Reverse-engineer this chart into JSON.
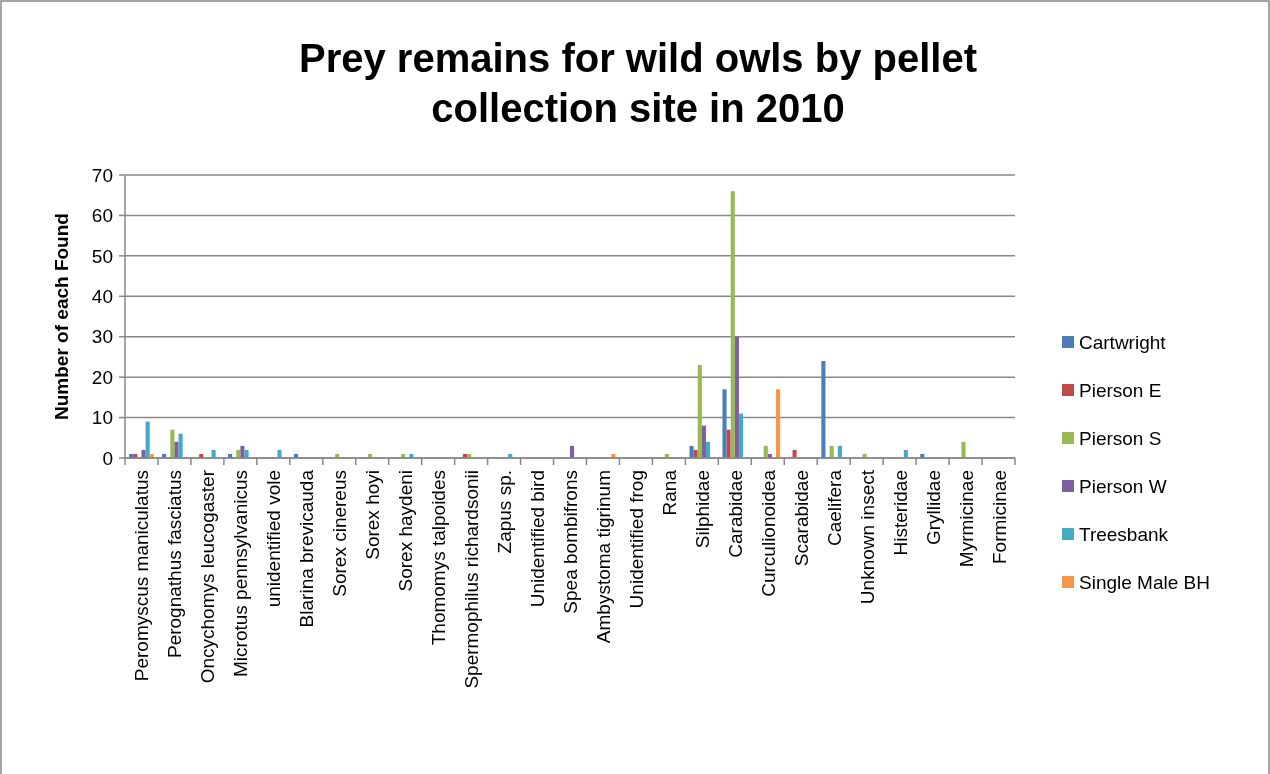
{
  "chart_data": {
    "type": "bar",
    "title": "Prey remains for wild owls by pellet collection site in 2010",
    "ylabel": "Number of each Found",
    "categories": [
      "Peromyscus maniculatus",
      "Perognathus fasciatus",
      "Oncychomys leucogaster",
      "Microtus pennsylvanicus",
      "unidentified vole",
      "Blarina brevicauda",
      "Sorex cinereus",
      "Sorex hoyi",
      "Sorex haydeni",
      "Thomomys talpoides",
      "Spermophilus richardsonii",
      "Zapus sp.",
      "Unidentified bird",
      "Spea bombifrons",
      "Ambystoma tigrinum",
      "Unidentified frog",
      "Rana",
      "Silphidae",
      "Carabidae",
      "Curculionoidea",
      "Scarabidae",
      "Caelifera",
      "Unknown insect",
      "Histeridae",
      "Gryllidae",
      "Myrmicinae",
      "Formicinae"
    ],
    "series": [
      {
        "name": "Cartwright",
        "color": "#4a7ebb",
        "values": [
          1,
          1,
          0,
          1,
          0,
          1,
          0,
          0,
          0,
          0,
          0,
          0,
          0,
          0,
          0,
          0,
          0,
          3,
          17,
          0,
          0,
          24,
          0,
          0,
          1,
          0,
          0
        ]
      },
      {
        "name": "Pierson E",
        "color": "#be4b48",
        "values": [
          1,
          0,
          1,
          0,
          0,
          0,
          0,
          0,
          0,
          0,
          1,
          0,
          0,
          0,
          0,
          0,
          0,
          2,
          7,
          0,
          2,
          0,
          0,
          0,
          0,
          0,
          0
        ]
      },
      {
        "name": "Pierson S",
        "color": "#98b954",
        "values": [
          0,
          7,
          0,
          2,
          0,
          0,
          1,
          1,
          1,
          0,
          1,
          0,
          0,
          0,
          0,
          0,
          1,
          23,
          66,
          3,
          0,
          3,
          1,
          0,
          0,
          4,
          0
        ]
      },
      {
        "name": "Pierson W",
        "color": "#7d60a0",
        "values": [
          2,
          4,
          0,
          3,
          0,
          0,
          0,
          0,
          0,
          0,
          0,
          0,
          0,
          3,
          0,
          0,
          0,
          8,
          30,
          1,
          0,
          0,
          0,
          0,
          0,
          0,
          0
        ]
      },
      {
        "name": "Treesbank",
        "color": "#46aac5",
        "values": [
          9,
          6,
          2,
          2,
          2,
          0,
          0,
          0,
          1,
          0,
          0,
          1,
          0,
          0,
          0,
          0,
          0,
          4,
          11,
          0,
          0,
          3,
          0,
          2,
          0,
          0,
          0
        ]
      },
      {
        "name": "Single Male BH",
        "color": "#f79646",
        "values": [
          1,
          0,
          0,
          0,
          0,
          0,
          0,
          0,
          0,
          0,
          0,
          0,
          0,
          0,
          1,
          0,
          0,
          0,
          0,
          17,
          0,
          0,
          0,
          0,
          0,
          0,
          0
        ]
      }
    ],
    "ylim": [
      0,
      70
    ],
    "yticks": [
      0,
      10,
      20,
      30,
      40,
      50,
      60,
      70
    ],
    "grid": "y",
    "legend": "right"
  }
}
